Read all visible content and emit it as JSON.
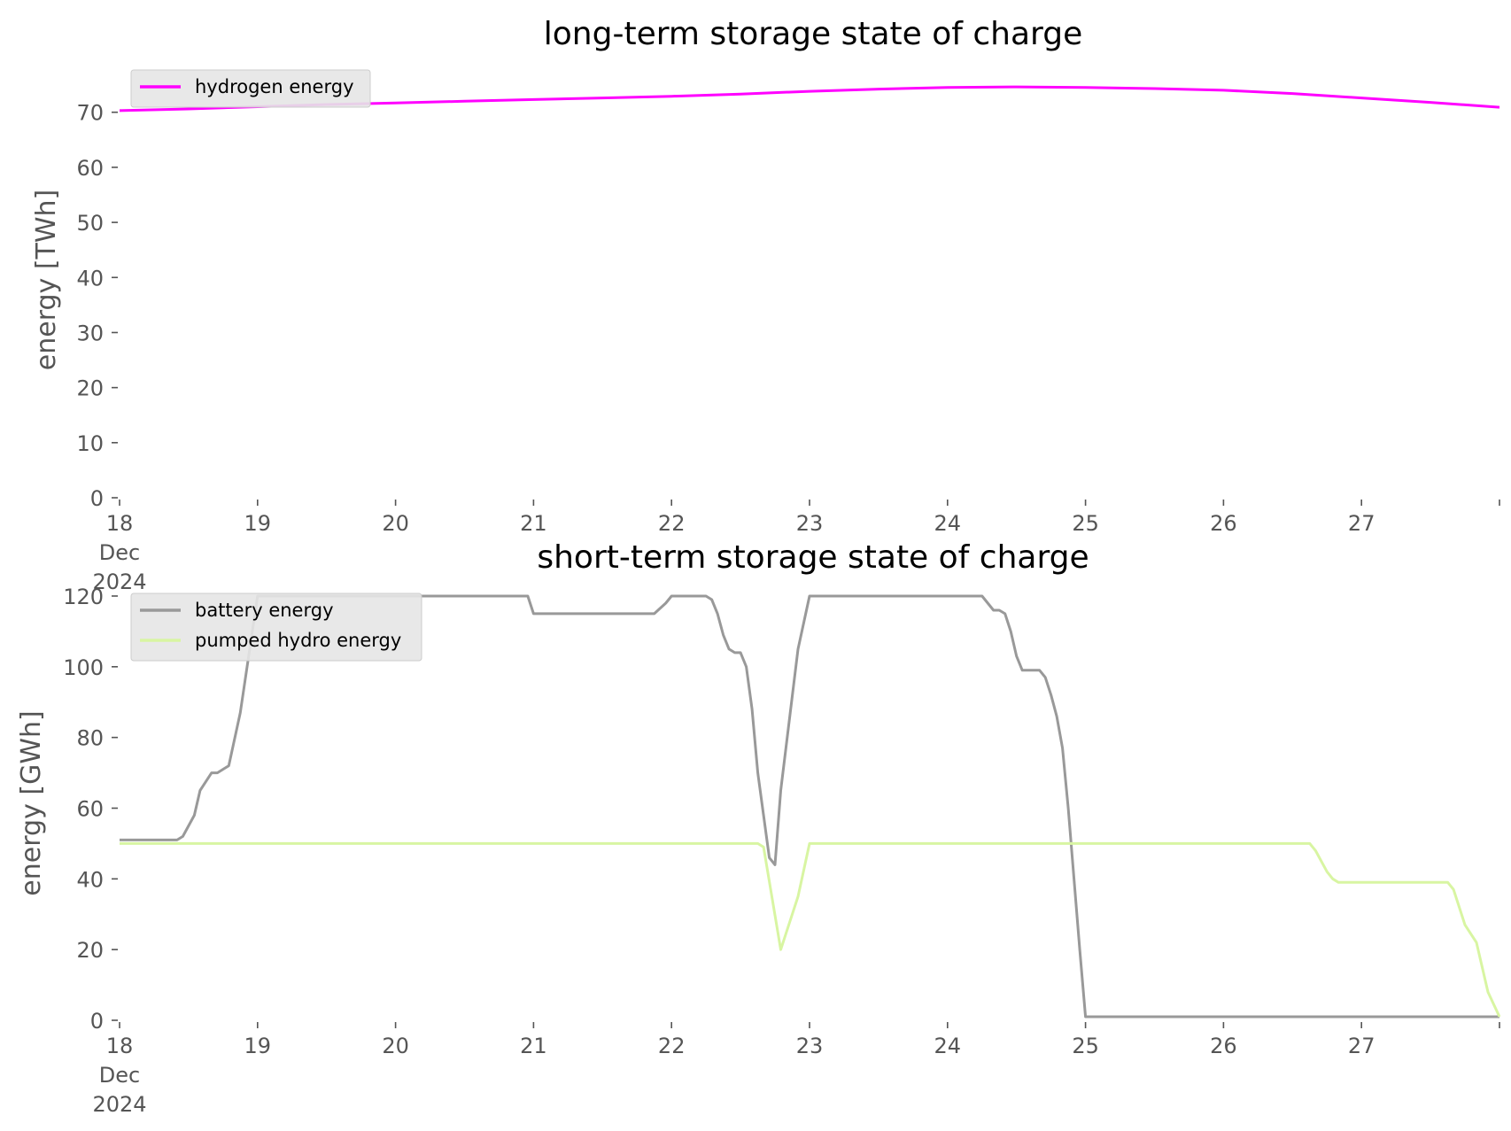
{
  "chart_data": [
    {
      "type": "line",
      "title": "long-term storage state of charge",
      "xlabel": "",
      "ylabel": "energy [TWh]",
      "xlim": [
        "2024-12-18",
        "2024-12-28"
      ],
      "ylim": [
        0,
        78
      ],
      "yticks": [
        0,
        10,
        20,
        30,
        40,
        50,
        60,
        70
      ],
      "ytick_labels": [
        "0",
        "10",
        "20",
        "30",
        "40",
        "50",
        "60",
        "70"
      ],
      "xticks": [
        "2024-12-18",
        "2024-12-19",
        "2024-12-20",
        "2024-12-21",
        "2024-12-22",
        "2024-12-23",
        "2024-12-24",
        "2024-12-25",
        "2024-12-26",
        "2024-12-27"
      ],
      "xtick_labels": [
        "18\nDec\n2024",
        "19",
        "20",
        "21",
        "22",
        "23",
        "24",
        "25",
        "26",
        "27"
      ],
      "grid": false,
      "legend": "top-left",
      "series": [
        {
          "name": "hydrogen energy",
          "color": "#ff00ff",
          "x": [
            "2024-12-18T00:00",
            "2024-12-18T12:00",
            "2024-12-19T00:00",
            "2024-12-19T12:00",
            "2024-12-20T00:00",
            "2024-12-20T12:00",
            "2024-12-21T00:00",
            "2024-12-21T12:00",
            "2024-12-22T00:00",
            "2024-12-22T12:00",
            "2024-12-23T00:00",
            "2024-12-23T12:00",
            "2024-12-24T00:00",
            "2024-12-24T12:00",
            "2024-12-25T00:00",
            "2024-12-25T12:00",
            "2024-12-26T00:00",
            "2024-12-26T12:00",
            "2024-12-27T00:00",
            "2024-12-27T12:00",
            "2024-12-28T00:00"
          ],
          "y": [
            70.3,
            70.6,
            71.0,
            71.4,
            71.7,
            72.0,
            72.3,
            72.6,
            72.9,
            73.3,
            73.8,
            74.2,
            74.5,
            74.6,
            74.5,
            74.3,
            74.0,
            73.4,
            72.6,
            71.8,
            70.9
          ]
        }
      ]
    },
    {
      "type": "line",
      "title": "short-term storage state of charge",
      "xlabel": "",
      "ylabel": "energy [GWh]",
      "xlim": [
        "2024-12-18",
        "2024-12-28"
      ],
      "ylim": [
        0,
        122
      ],
      "yticks": [
        0,
        20,
        40,
        60,
        80,
        100,
        120
      ],
      "ytick_labels": [
        "0",
        "20",
        "40",
        "60",
        "80",
        "100",
        "120"
      ],
      "xticks": [
        "2024-12-18",
        "2024-12-19",
        "2024-12-20",
        "2024-12-21",
        "2024-12-22",
        "2024-12-23",
        "2024-12-24",
        "2024-12-25",
        "2024-12-26",
        "2024-12-27"
      ],
      "xtick_labels": [
        "18\nDec\n2024",
        "19",
        "20",
        "21",
        "22",
        "23",
        "24",
        "25",
        "26",
        "27"
      ],
      "grid": false,
      "legend": "top-left",
      "series": [
        {
          "name": "battery energy",
          "color": "#999999",
          "x": [
            "2024-12-18T00:00",
            "2024-12-18T10:00",
            "2024-12-18T11:00",
            "2024-12-18T13:00",
            "2024-12-18T14:00",
            "2024-12-18T16:00",
            "2024-12-18T17:00",
            "2024-12-18T19:00",
            "2024-12-18T21:00",
            "2024-12-19T00:00",
            "2024-12-20T23:00",
            "2024-12-21T00:00",
            "2024-12-21T21:00",
            "2024-12-21T23:00",
            "2024-12-22T00:00",
            "2024-12-22T06:00",
            "2024-12-22T07:00",
            "2024-12-22T08:00",
            "2024-12-22T09:00",
            "2024-12-22T10:00",
            "2024-12-22T11:00",
            "2024-12-22T12:00",
            "2024-12-22T13:00",
            "2024-12-22T14:00",
            "2024-12-22T15:00",
            "2024-12-22T16:00",
            "2024-12-22T17:00",
            "2024-12-22T18:00",
            "2024-12-22T19:00",
            "2024-12-22T22:00",
            "2024-12-23T00:00",
            "2024-12-24T06:00",
            "2024-12-24T08:00",
            "2024-12-24T09:00",
            "2024-12-24T10:00",
            "2024-12-24T11:00",
            "2024-12-24T12:00",
            "2024-12-24T13:00",
            "2024-12-24T15:00",
            "2024-12-24T16:00",
            "2024-12-24T17:00",
            "2024-12-24T18:00",
            "2024-12-24T19:00",
            "2024-12-24T20:00",
            "2024-12-24T21:00",
            "2024-12-24T22:00",
            "2024-12-24T23:00",
            "2024-12-25T00:00",
            "2024-12-28T00:00"
          ],
          "y": [
            51,
            51,
            52,
            58,
            65,
            70,
            70,
            72,
            87,
            120,
            120,
            115,
            115,
            118,
            120,
            120,
            119,
            115,
            109,
            105,
            104,
            104,
            100,
            88,
            70,
            58,
            46,
            44,
            65,
            105,
            120,
            120,
            116,
            116,
            115,
            110,
            103,
            99,
            99,
            99,
            97,
            92,
            86,
            77,
            60,
            40,
            20,
            1,
            1
          ]
        },
        {
          "name": "pumped hydro energy",
          "color": "#d8f5a2",
          "x": [
            "2024-12-18T00:00",
            "2024-12-22T15:00",
            "2024-12-22T16:00",
            "2024-12-22T19:00",
            "2024-12-22T22:00",
            "2024-12-23T00:00",
            "2024-12-26T15:00",
            "2024-12-26T16:00",
            "2024-12-26T18:00",
            "2024-12-26T19:00",
            "2024-12-26T20:00",
            "2024-12-27T15:00",
            "2024-12-27T16:00",
            "2024-12-27T18:00",
            "2024-12-27T20:00",
            "2024-12-27T22:00",
            "2024-12-28T00:00"
          ],
          "y": [
            50,
            50,
            49,
            20,
            35,
            50,
            50,
            48,
            42,
            40,
            39,
            39,
            37,
            27,
            22,
            8,
            1
          ]
        }
      ]
    }
  ]
}
